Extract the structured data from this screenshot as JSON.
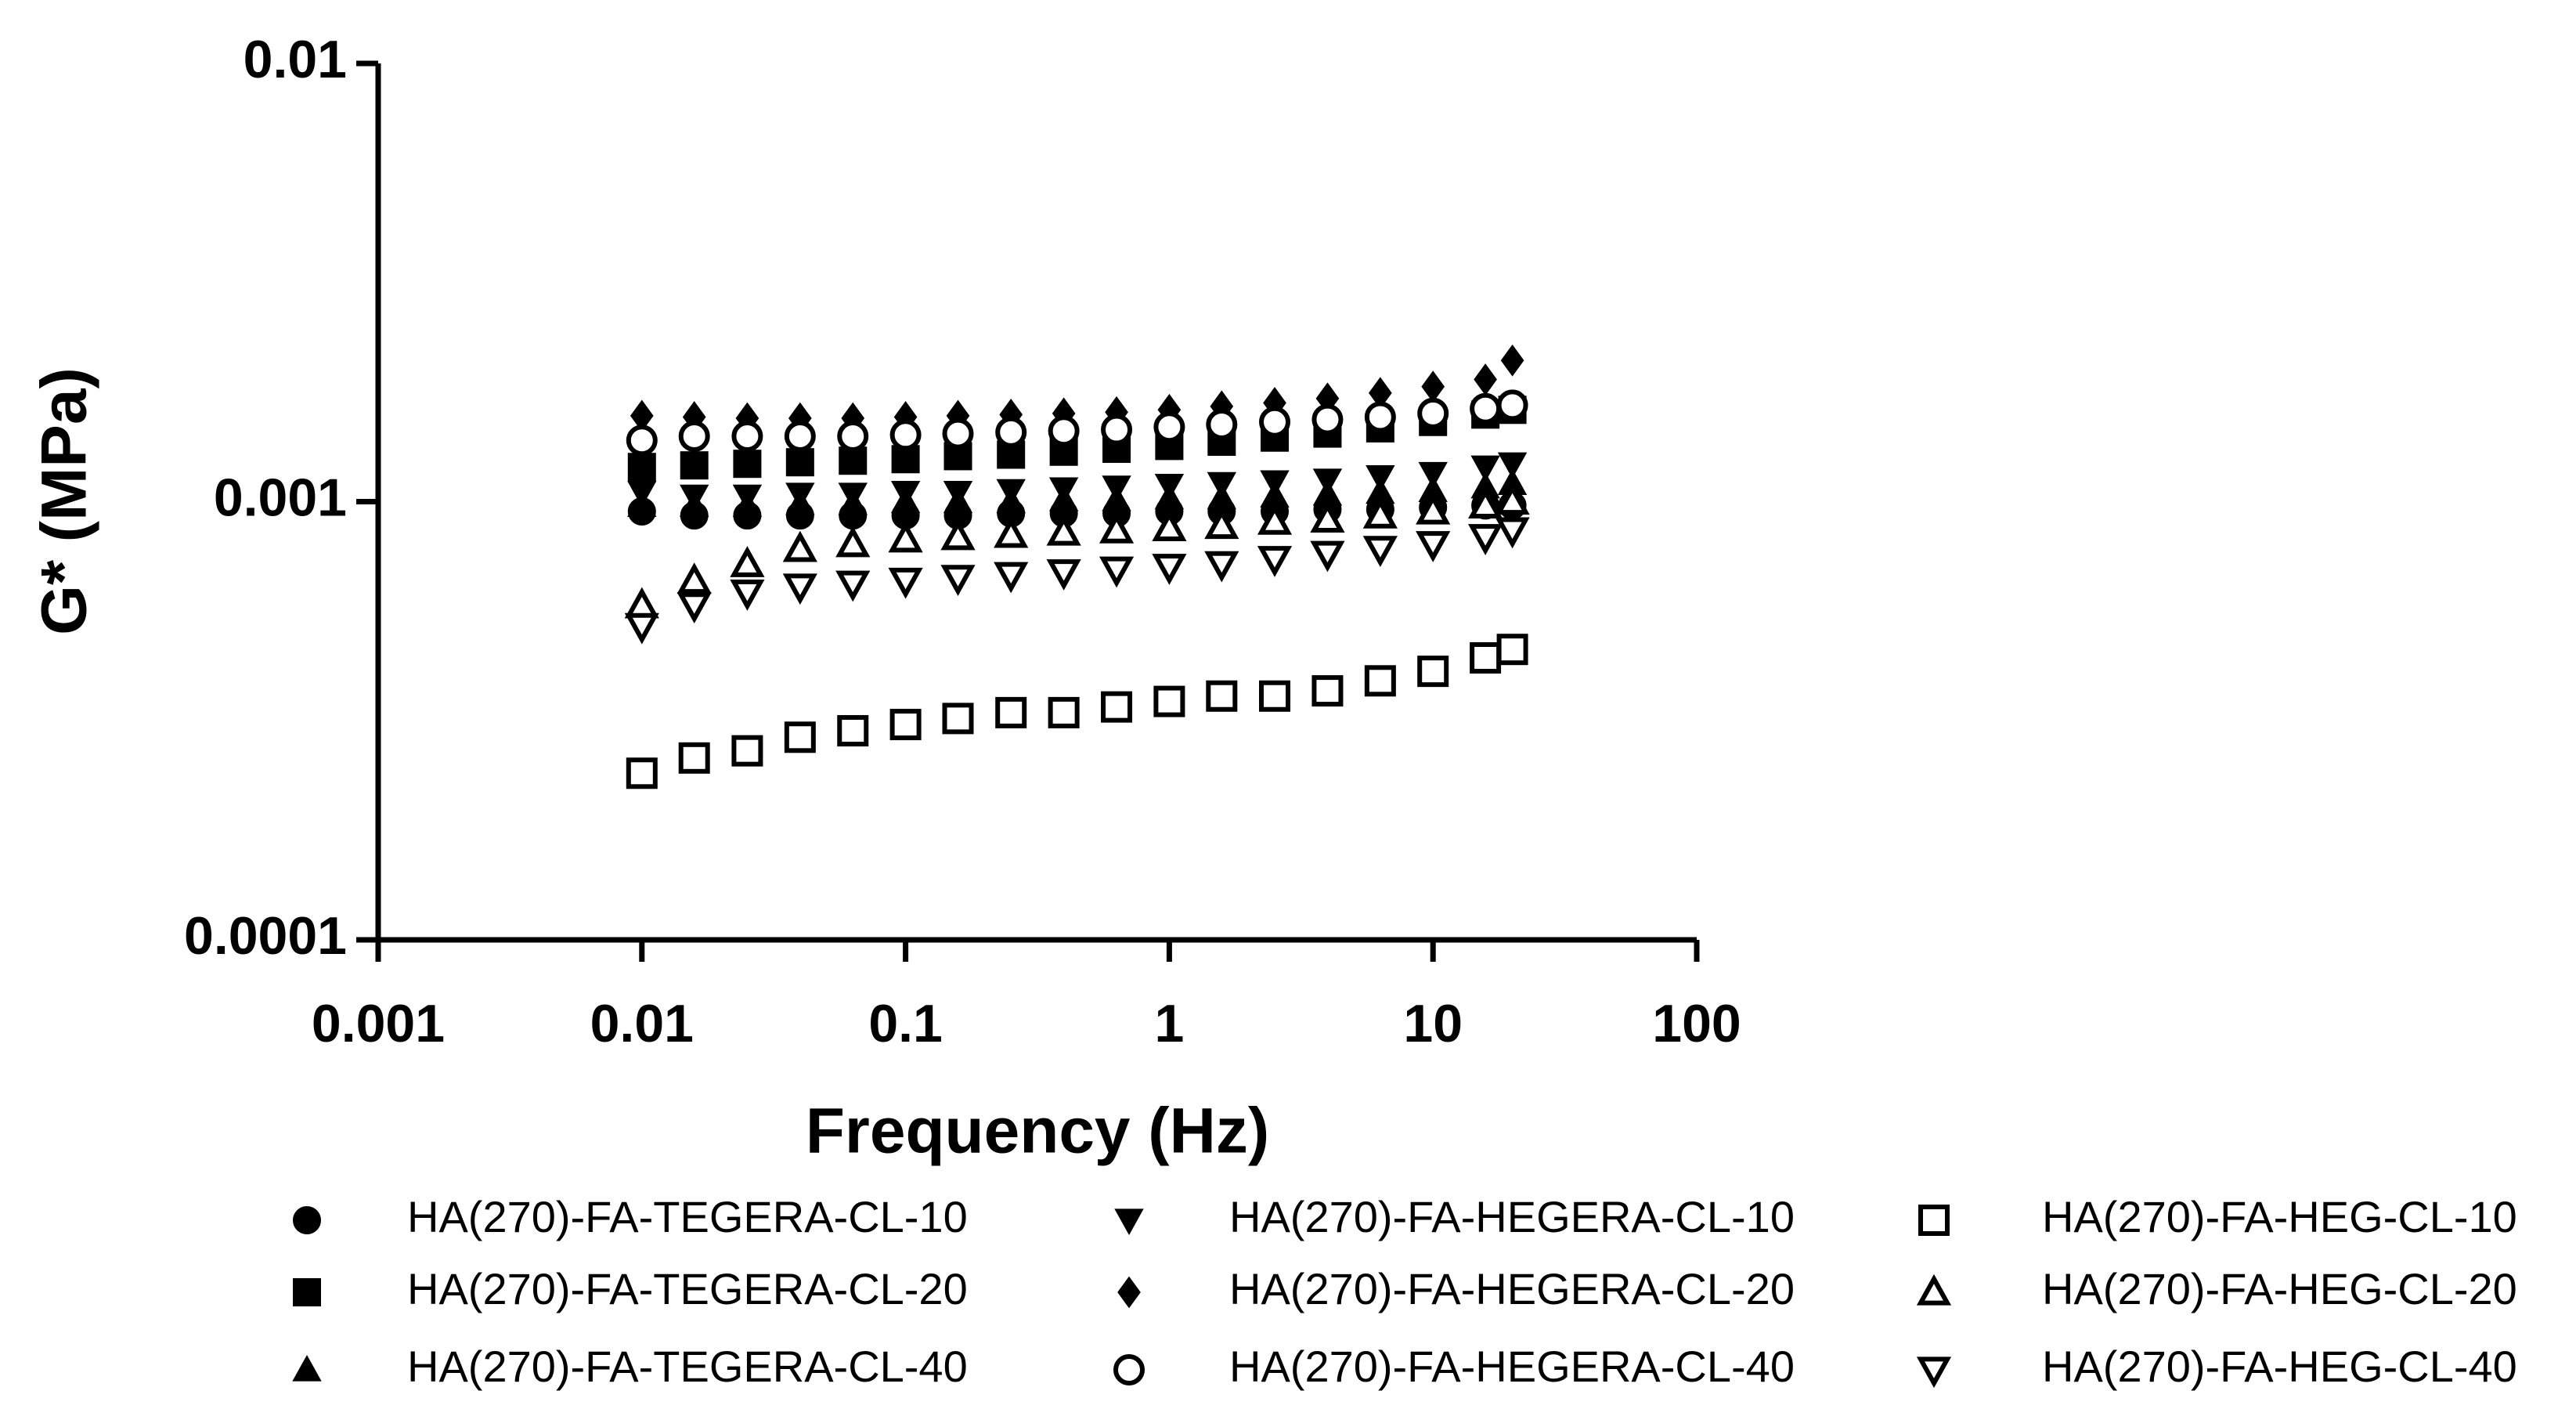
{
  "chart_data": {
    "type": "scatter",
    "xlabel": "Frequency (Hz)",
    "ylabel": "G* (MPa)",
    "xscale": "log",
    "yscale": "log",
    "xlim": [
      0.001,
      100
    ],
    "xticks": [
      0.001,
      0.01,
      0.1,
      1,
      10,
      100
    ],
    "ylim": [
      0.0001,
      0.01
    ],
    "yticks": [
      0.0001,
      0.001,
      0.01
    ],
    "x": [
      0.01,
      0.0158,
      0.0251,
      0.0398,
      0.0631,
      0.1,
      0.158,
      0.251,
      0.398,
      0.631,
      1,
      1.58,
      2.51,
      3.98,
      6.31,
      10,
      15.8,
      20
    ],
    "series": [
      {
        "name": "HA(270)-FA-TEGERA-CL-10",
        "color": "#000000",
        "marker": "circle",
        "filled": true,
        "values": [
          0.00095,
          0.00093,
          0.00093,
          0.00093,
          0.00093,
          0.00093,
          0.00093,
          0.00094,
          0.00094,
          0.00094,
          0.00095,
          0.00095,
          0.00095,
          0.00096,
          0.00096,
          0.00097,
          0.00098,
          0.00098
        ]
      },
      {
        "name": "HA(270)-FA-TEGERA-CL-20",
        "color": "#000000",
        "marker": "square",
        "filled": true,
        "values": [
          0.0012,
          0.00121,
          0.00122,
          0.00123,
          0.00124,
          0.00125,
          0.00127,
          0.00128,
          0.0013,
          0.00132,
          0.00134,
          0.00137,
          0.0014,
          0.00143,
          0.00147,
          0.00152,
          0.00158,
          0.00162
        ]
      },
      {
        "name": "HA(270)-FA-TEGERA-CL-40",
        "color": "#000000",
        "marker": "triangle-up",
        "filled": true,
        "values": [
          0.00098,
          0.00098,
          0.00098,
          0.00099,
          0.00099,
          0.001,
          0.001,
          0.001,
          0.00101,
          0.00101,
          0.00102,
          0.00102,
          0.00103,
          0.00104,
          0.00105,
          0.00106,
          0.00108,
          0.0011
        ]
      },
      {
        "name": "HA(270)-FA-HEGERA-CL-10",
        "color": "#000000",
        "marker": "triangle-down",
        "filled": true,
        "values": [
          0.00105,
          0.00103,
          0.00103,
          0.00104,
          0.00104,
          0.00105,
          0.00105,
          0.00106,
          0.00107,
          0.00108,
          0.00109,
          0.0011,
          0.00111,
          0.00112,
          0.00114,
          0.00116,
          0.0012,
          0.00122
        ]
      },
      {
        "name": "HA(270)-FA-HEGERA-CL-20",
        "color": "#000000",
        "marker": "diamond",
        "filled": true,
        "values": [
          0.00157,
          0.00156,
          0.00155,
          0.00155,
          0.00155,
          0.00156,
          0.00157,
          0.00158,
          0.00159,
          0.0016,
          0.00162,
          0.00165,
          0.00168,
          0.00172,
          0.00177,
          0.00183,
          0.0019,
          0.0021
        ]
      },
      {
        "name": "HA(270)-FA-HEGERA-CL-40",
        "color": "#000000",
        "marker": "circle",
        "filled": false,
        "values": [
          0.00138,
          0.00141,
          0.00141,
          0.00141,
          0.00141,
          0.00142,
          0.00143,
          0.00144,
          0.00145,
          0.00146,
          0.00148,
          0.0015,
          0.00152,
          0.00154,
          0.00156,
          0.00159,
          0.00163,
          0.00166
        ]
      },
      {
        "name": "HA(270)-FA-HEG-CL-10",
        "color": "#000000",
        "marker": "square",
        "filled": false,
        "values": [
          0.00024,
          0.00026,
          0.00027,
          0.00029,
          0.0003,
          0.00031,
          0.00032,
          0.00033,
          0.00033,
          0.00034,
          0.00035,
          0.00036,
          0.00036,
          0.00037,
          0.00039,
          0.00041,
          0.00044,
          0.00046
        ]
      },
      {
        "name": "HA(270)-FA-HEG-CL-20",
        "color": "#000000",
        "marker": "triangle-up",
        "filled": false,
        "values": [
          0.00058,
          0.00066,
          0.00072,
          0.00078,
          0.0008,
          0.00082,
          0.00083,
          0.00084,
          0.00085,
          0.00086,
          0.00087,
          0.00088,
          0.0009,
          0.00091,
          0.00093,
          0.00095,
          0.00098,
          0.001
        ]
      },
      {
        "name": "HA(270)-FA-HEG-CL-40",
        "color": "#000000",
        "marker": "triangle-down",
        "filled": false,
        "values": [
          0.00052,
          0.00058,
          0.00062,
          0.00064,
          0.00065,
          0.00066,
          0.00067,
          0.00068,
          0.00069,
          0.0007,
          0.00071,
          0.00072,
          0.00074,
          0.00076,
          0.00078,
          0.0008,
          0.00083,
          0.00086
        ]
      }
    ]
  }
}
